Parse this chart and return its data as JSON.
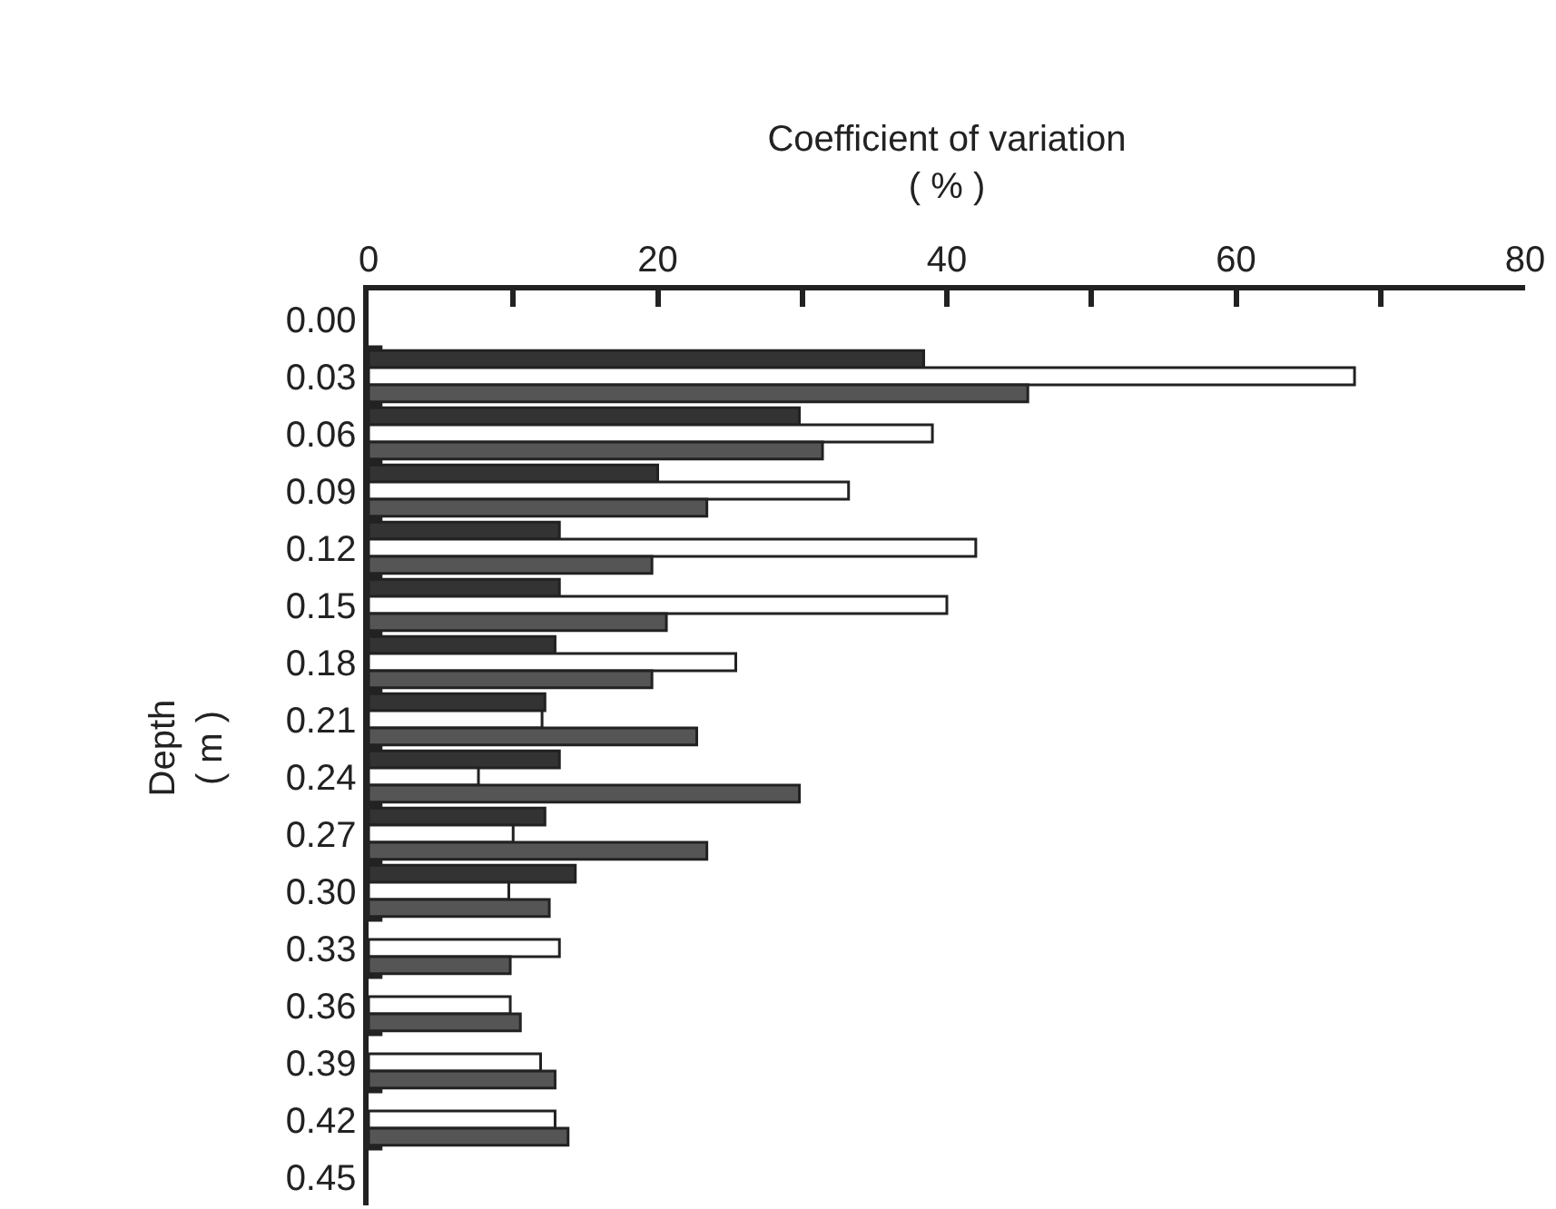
{
  "chart_data": {
    "type": "bar",
    "orientation": "horizontal",
    "xlabel": "Coefficient of variation\n( % )",
    "ylabel": "Depth\n( m )",
    "categories": [
      "0.00",
      "0.03",
      "0.06",
      "0.09",
      "0.12",
      "0.15",
      "0.18",
      "0.21",
      "0.24",
      "0.27",
      "0.30",
      "0.33",
      "0.36",
      "0.39",
      "0.42",
      "0.45"
    ],
    "series": [
      {
        "color": "#333333",
        "values": [
          null,
          38.4,
          29.8,
          20,
          13.2,
          13.2,
          12.9,
          12.2,
          13.2,
          12.2,
          14.3,
          null,
          null,
          null,
          null,
          null
        ]
      },
      {
        "color": "#ffffff",
        "values": [
          null,
          68.2,
          39,
          33.2,
          42,
          40,
          25.4,
          12,
          7.6,
          10,
          9.7,
          13.2,
          9.8,
          11.9,
          12.9,
          null
        ]
      },
      {
        "color": "#555555",
        "values": [
          null,
          45.6,
          31.4,
          23.4,
          19.6,
          20.6,
          19.6,
          22.7,
          29.8,
          23.4,
          12.5,
          9.8,
          10.5,
          12.9,
          13.8,
          null
        ]
      }
    ],
    "xlim": [
      0,
      80
    ],
    "xticks": [
      0,
      {
        "value": 10,
        "label": null
      },
      20,
      {
        "value": 30,
        "label": null
      },
      40,
      {
        "value": 50,
        "label": null
      },
      60,
      {
        "value": 70,
        "label": null
      },
      80
    ],
    "grid": false
  }
}
